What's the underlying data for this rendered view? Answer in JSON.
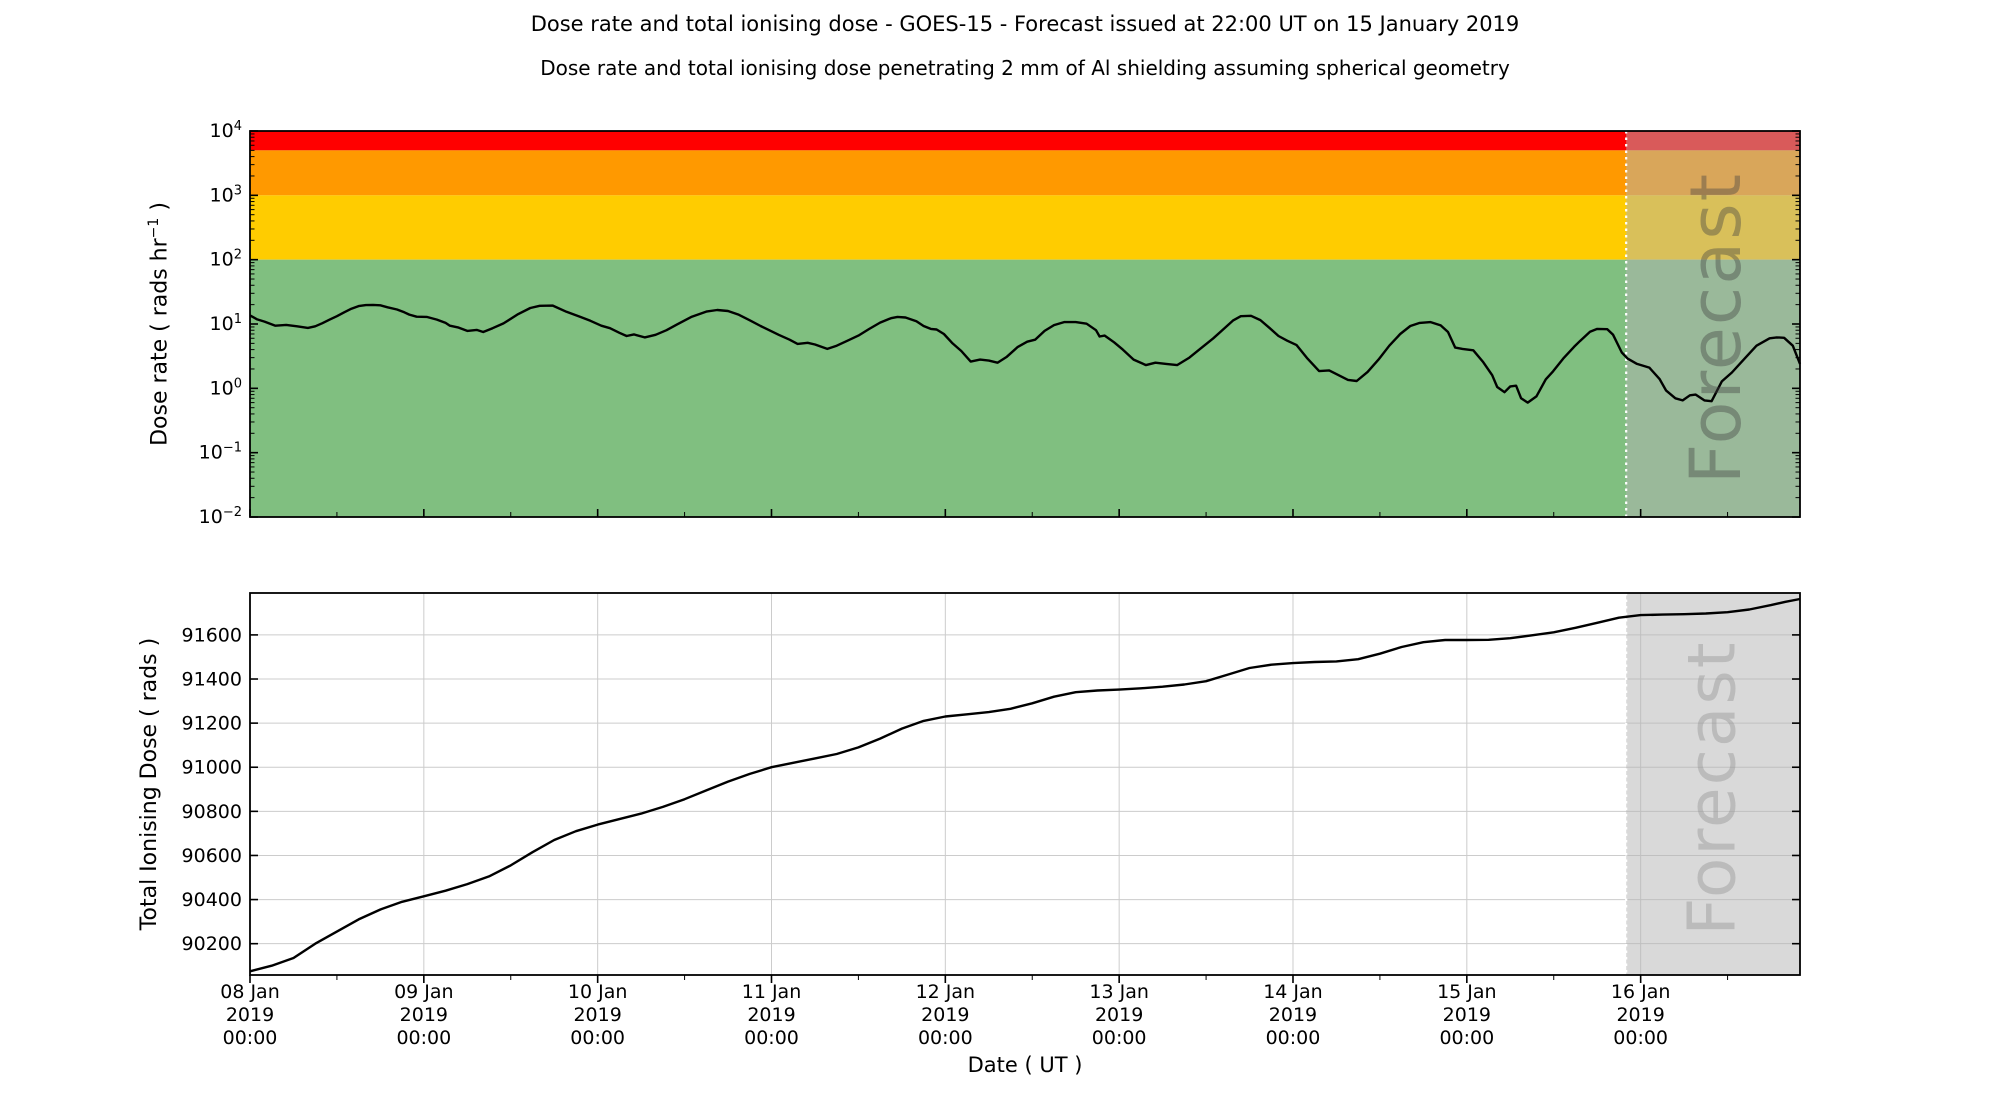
{
  "header": {
    "title": "Dose rate and total ionising dose - GOES-15 - Forecast issued at 22:00 UT on 15 January 2019",
    "subtitle": "Dose rate and total ionising dose penetrating 2 mm of Al shielding assuming spherical geometry"
  },
  "colors": {
    "band_red": "#FF0000",
    "band_orange": "#FF9900",
    "band_yellow": "#FFCC00",
    "band_green": "#80BF80",
    "forecast_overlay": "rgba(180,180,180,0.5)",
    "forecast_text_top": "rgba(64,64,64,0.40)",
    "forecast_text_bottom": "rgba(150,150,150,0.45)",
    "forecast_divider": "#FFFFFF",
    "grid": "#CCCCCC",
    "curve": "#000000",
    "frame": "#000000"
  },
  "x_axis": {
    "label": "Date ( UT )",
    "span_hours": 214,
    "minor_tick_hours": 12,
    "ticks": [
      {
        "hour": 0,
        "date": "08 Jan",
        "year": "2019",
        "time": "00:00"
      },
      {
        "hour": 24,
        "date": "09 Jan",
        "year": "2019",
        "time": "00:00"
      },
      {
        "hour": 48,
        "date": "10 Jan",
        "year": "2019",
        "time": "00:00"
      },
      {
        "hour": 72,
        "date": "11 Jan",
        "year": "2019",
        "time": "00:00"
      },
      {
        "hour": 96,
        "date": "12 Jan",
        "year": "2019",
        "time": "00:00"
      },
      {
        "hour": 120,
        "date": "13 Jan",
        "year": "2019",
        "time": "00:00"
      },
      {
        "hour": 144,
        "date": "14 Jan",
        "year": "2019",
        "time": "00:00"
      },
      {
        "hour": 168,
        "date": "15 Jan",
        "year": "2019",
        "time": "00:00"
      },
      {
        "hour": 192,
        "date": "16 Jan",
        "year": "2019",
        "time": "00:00"
      }
    ]
  },
  "forecast": {
    "label": "Forecast",
    "start_hours": 190,
    "start_time": "15 Jan 2019 22:00 UT"
  },
  "chart_data": [
    {
      "type": "line",
      "name": "dose_rate",
      "yscale": "log",
      "ylabel_prefix": "Dose rate ( rads hr",
      "ylabel_sup": "−1",
      "ylabel_suffix": " )",
      "ylim": [
        0.01,
        10000
      ],
      "ytick_base": "10",
      "ytick_exponents": [
        4,
        3,
        2,
        1,
        0,
        -1,
        -2
      ],
      "grid": false,
      "bands": [
        {
          "name": "red",
          "from": 5000,
          "to": 10000,
          "color_key": "band_red"
        },
        {
          "name": "orange",
          "from": 1000,
          "to": 5000,
          "color_key": "band_orange"
        },
        {
          "name": "yellow",
          "from": 100,
          "to": 1000,
          "color_key": "band_yellow"
        },
        {
          "name": "green",
          "from": 0.01,
          "to": 100,
          "color_key": "band_green"
        }
      ],
      "series": {
        "name": "dose-rate",
        "points": [
          [
            0,
            13.6
          ],
          [
            1,
            11.8
          ],
          [
            2,
            10.9
          ],
          [
            3.5,
            9.4
          ],
          [
            5,
            9.7
          ],
          [
            6.5,
            9.2
          ],
          [
            8,
            8.7
          ],
          [
            9,
            9.2
          ],
          [
            10,
            10.3
          ],
          [
            11,
            11.7
          ],
          [
            12,
            13.2
          ],
          [
            13,
            15.2
          ],
          [
            14,
            17.3
          ],
          [
            15,
            19.0
          ],
          [
            16,
            19.7
          ],
          [
            17,
            19.8
          ],
          [
            18,
            19.5
          ],
          [
            19,
            18.2
          ],
          [
            20.3,
            16.8
          ],
          [
            21.3,
            15.2
          ],
          [
            22,
            14.0
          ],
          [
            23,
            13.0
          ],
          [
            24.4,
            12.9
          ],
          [
            25.8,
            11.7
          ],
          [
            27,
            10.4
          ],
          [
            27.6,
            9.4
          ],
          [
            28.8,
            8.8
          ],
          [
            30,
            7.8
          ],
          [
            31.3,
            8.1
          ],
          [
            32.2,
            7.5
          ],
          [
            33.5,
            8.6
          ],
          [
            35,
            10.2
          ],
          [
            36.9,
            14.0
          ],
          [
            38.7,
            17.7
          ],
          [
            40,
            19.2
          ],
          [
            41.8,
            19.3
          ],
          [
            43.7,
            15.5
          ],
          [
            45.6,
            12.9
          ],
          [
            47,
            11.2
          ],
          [
            48.5,
            9.4
          ],
          [
            49.7,
            8.6
          ],
          [
            51,
            7.3
          ],
          [
            52,
            6.5
          ],
          [
            53,
            6.9
          ],
          [
            54.5,
            6.2
          ],
          [
            56,
            6.8
          ],
          [
            57.5,
            8.0
          ],
          [
            59,
            9.9
          ],
          [
            61,
            13.0
          ],
          [
            63,
            15.6
          ],
          [
            64.5,
            16.5
          ],
          [
            66,
            15.9
          ],
          [
            67.5,
            13.9
          ],
          [
            69,
            11.4
          ],
          [
            70.5,
            9.3
          ],
          [
            71.8,
            7.9
          ],
          [
            73,
            6.8
          ],
          [
            74.5,
            5.7
          ],
          [
            75.6,
            4.9
          ],
          [
            77,
            5.1
          ],
          [
            78,
            4.8
          ],
          [
            79.7,
            4.1
          ],
          [
            81,
            4.6
          ],
          [
            82.5,
            5.5
          ],
          [
            84,
            6.6
          ],
          [
            85.5,
            8.4
          ],
          [
            87,
            10.5
          ],
          [
            88.5,
            12.3
          ],
          [
            89.4,
            12.9
          ],
          [
            90.5,
            12.6
          ],
          [
            92,
            11.0
          ],
          [
            93,
            9.3
          ],
          [
            94,
            8.4
          ],
          [
            94.8,
            8.2
          ],
          [
            95.8,
            7.0
          ],
          [
            97,
            5.0
          ],
          [
            98.2,
            3.8
          ],
          [
            99.5,
            2.6
          ],
          [
            100.8,
            2.8
          ],
          [
            102,
            2.7
          ],
          [
            103.2,
            2.5
          ],
          [
            104.5,
            3.1
          ],
          [
            106,
            4.4
          ],
          [
            107.3,
            5.3
          ],
          [
            108.4,
            5.7
          ],
          [
            109.7,
            7.8
          ],
          [
            111,
            9.6
          ],
          [
            112.4,
            10.7
          ],
          [
            114,
            10.7
          ],
          [
            115.5,
            10.1
          ],
          [
            116.8,
            8.0
          ],
          [
            117.3,
            6.4
          ],
          [
            118,
            6.6
          ],
          [
            119.3,
            5.2
          ],
          [
            120.5,
            4.0
          ],
          [
            122,
            2.8
          ],
          [
            123.7,
            2.3
          ],
          [
            125,
            2.5
          ],
          [
            126.5,
            2.4
          ],
          [
            128,
            2.3
          ],
          [
            129.7,
            3.0
          ],
          [
            131.3,
            4.2
          ],
          [
            133,
            6.0
          ],
          [
            134.5,
            8.5
          ],
          [
            135.7,
            11.3
          ],
          [
            136.8,
            13.2
          ],
          [
            138.2,
            13.4
          ],
          [
            139.5,
            11.5
          ],
          [
            140.8,
            8.6
          ],
          [
            142,
            6.5
          ],
          [
            143.2,
            5.5
          ],
          [
            144.5,
            4.7
          ],
          [
            146,
            2.9
          ],
          [
            147.6,
            1.85
          ],
          [
            149,
            1.9
          ],
          [
            150.3,
            1.6
          ],
          [
            151.6,
            1.35
          ],
          [
            152.8,
            1.3
          ],
          [
            154.3,
            1.8
          ],
          [
            155.8,
            2.8
          ],
          [
            157.3,
            4.6
          ],
          [
            158.8,
            7.0
          ],
          [
            160.2,
            9.3
          ],
          [
            161.5,
            10.4
          ],
          [
            163,
            10.7
          ],
          [
            164.4,
            9.5
          ],
          [
            165.4,
            7.5
          ],
          [
            166.4,
            4.3
          ],
          [
            167.4,
            4.1
          ],
          [
            168.9,
            3.9
          ],
          [
            170.2,
            2.6
          ],
          [
            171.5,
            1.6
          ],
          [
            172.2,
            1.05
          ],
          [
            173.2,
            0.87
          ],
          [
            174,
            1.07
          ],
          [
            174.8,
            1.1
          ],
          [
            175.5,
            0.7
          ],
          [
            176.4,
            0.6
          ],
          [
            177.6,
            0.75
          ],
          [
            178.9,
            1.38
          ],
          [
            179.9,
            1.83
          ],
          [
            181.3,
            2.9
          ],
          [
            182.8,
            4.4
          ],
          [
            183.6,
            5.4
          ],
          [
            185,
            7.6
          ],
          [
            186,
            8.4
          ],
          [
            187.4,
            8.3
          ],
          [
            188.2,
            6.8
          ],
          [
            189.4,
            3.6
          ],
          [
            190.2,
            2.9
          ],
          [
            191.5,
            2.4
          ],
          [
            193.2,
            2.1
          ],
          [
            194.6,
            1.4
          ],
          [
            195.5,
            0.93
          ],
          [
            196.8,
            0.7
          ],
          [
            197.8,
            0.65
          ],
          [
            198.8,
            0.78
          ],
          [
            199.6,
            0.8
          ],
          [
            200.8,
            0.65
          ],
          [
            201.8,
            0.63
          ],
          [
            203.2,
            1.28
          ],
          [
            204.6,
            1.76
          ],
          [
            206.1,
            2.7
          ],
          [
            208,
            4.6
          ],
          [
            209.8,
            6.0
          ],
          [
            210.8,
            6.2
          ],
          [
            211.8,
            6.1
          ],
          [
            213,
            4.6
          ],
          [
            214,
            2.4
          ]
        ]
      }
    },
    {
      "type": "line",
      "name": "total_dose",
      "yscale": "linear",
      "ylabel": "Total Ionising Dose ( rads )",
      "ylim": [
        90058,
        91790
      ],
      "yticks": [
        90200,
        90400,
        90600,
        90800,
        91000,
        91200,
        91400,
        91600
      ],
      "grid": true,
      "series": {
        "name": "total-ionising-dose",
        "points": [
          [
            0,
            90075
          ],
          [
            3,
            90100
          ],
          [
            6,
            90135
          ],
          [
            9,
            90200
          ],
          [
            12,
            90255
          ],
          [
            15,
            90310
          ],
          [
            18,
            90355
          ],
          [
            21,
            90390
          ],
          [
            24,
            90415
          ],
          [
            27,
            90440
          ],
          [
            30,
            90470
          ],
          [
            33,
            90505
          ],
          [
            36,
            90555
          ],
          [
            39,
            90615
          ],
          [
            42,
            90670
          ],
          [
            45,
            90710
          ],
          [
            48,
            90740
          ],
          [
            51,
            90765
          ],
          [
            54,
            90790
          ],
          [
            57,
            90820
          ],
          [
            60,
            90855
          ],
          [
            63,
            90895
          ],
          [
            66,
            90935
          ],
          [
            69,
            90970
          ],
          [
            72,
            91000
          ],
          [
            75,
            91020
          ],
          [
            78,
            91040
          ],
          [
            81,
            91060
          ],
          [
            84,
            91090
          ],
          [
            87,
            91130
          ],
          [
            90,
            91175
          ],
          [
            93,
            91210
          ],
          [
            96,
            91230
          ],
          [
            99,
            91240
          ],
          [
            102,
            91250
          ],
          [
            105,
            91265
          ],
          [
            108,
            91290
          ],
          [
            111,
            91320
          ],
          [
            114,
            91340
          ],
          [
            117,
            91348
          ],
          [
            120,
            91352
          ],
          [
            123,
            91358
          ],
          [
            126,
            91365
          ],
          [
            129,
            91375
          ],
          [
            132,
            91390
          ],
          [
            135,
            91420
          ],
          [
            138,
            91450
          ],
          [
            141,
            91465
          ],
          [
            144,
            91472
          ],
          [
            147,
            91477
          ],
          [
            150,
            91480
          ],
          [
            153,
            91490
          ],
          [
            156,
            91515
          ],
          [
            159,
            91545
          ],
          [
            162,
            91567
          ],
          [
            165,
            91577
          ],
          [
            168,
            91577
          ],
          [
            171,
            91578
          ],
          [
            174,
            91585
          ],
          [
            177,
            91598
          ],
          [
            180,
            91612
          ],
          [
            183,
            91632
          ],
          [
            186,
            91655
          ],
          [
            189,
            91678
          ],
          [
            192,
            91690
          ],
          [
            195,
            91692
          ],
          [
            198,
            91694
          ],
          [
            201,
            91697
          ],
          [
            204,
            91703
          ],
          [
            207,
            91715
          ],
          [
            210,
            91735
          ],
          [
            212,
            91750
          ],
          [
            214,
            91763
          ]
        ]
      }
    }
  ]
}
